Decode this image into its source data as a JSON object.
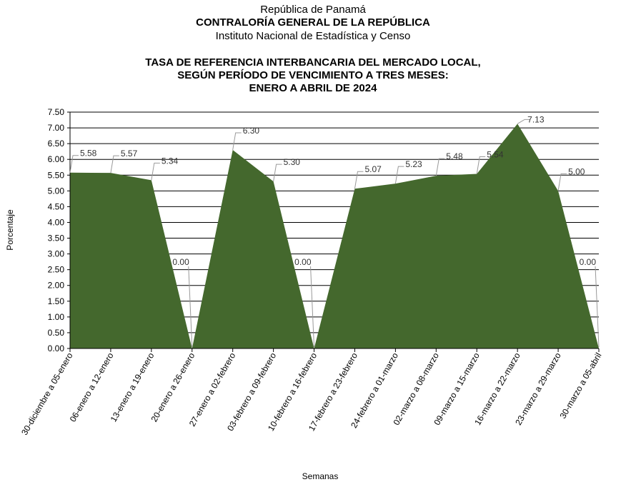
{
  "header": {
    "line1": "República de Panamá",
    "line2": "CONTRALORÍA GENERAL DE LA REPÚBLICA",
    "line3": "Instituto Nacional de Estadística y Censo"
  },
  "chart_data": {
    "type": "area",
    "title": [
      "TASA DE REFERENCIA INTERBANCARIA DEL MERCADO LOCAL,",
      "SEGÚN PERÍODO DE VENCIMIENTO A TRES MESES:",
      "ENERO A ABRIL DE 2024"
    ],
    "xlabel": "Semanas",
    "ylabel": "Porcentaje",
    "ylim": [
      0,
      7.5
    ],
    "ytick_step": 0.5,
    "grid": true,
    "fill_color": "#44682D",
    "categories": [
      "30-diciembre a 05-enero",
      "06-enero a 12-enero",
      "13-enero a 19-enero",
      "20-enero a 26-enero",
      "27-enero a 02-febrero",
      "03-febrero a 09-febrero",
      "10-febrero a 16-febrero",
      "17-febrero a 23-febrero",
      "24-febrero a 01-marzo",
      "02-marzo a 08-marzo",
      "09-marzo a 15-marzo",
      "16-marzo a 22-marzo",
      "23-marzo a 29-marzo",
      "30-marzo a 05-abril"
    ],
    "values": [
      5.58,
      5.57,
      5.34,
      0.0,
      6.3,
      5.3,
      0.0,
      5.07,
      5.23,
      5.48,
      5.54,
      7.13,
      5.0,
      0.0
    ]
  }
}
